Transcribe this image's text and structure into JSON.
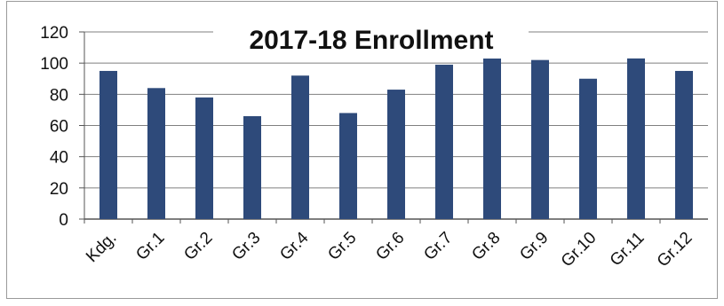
{
  "chart_data": {
    "type": "bar",
    "title": "2017-18 Enrollment",
    "xlabel": "",
    "ylabel": "",
    "categories": [
      "Kdg.",
      "Gr.1",
      "Gr.2",
      "Gr.3",
      "Gr.4",
      "Gr.5",
      "Gr.6",
      "Gr.7",
      "Gr.8",
      "Gr.9",
      "Gr.10",
      "Gr.11",
      "Gr.12"
    ],
    "values": [
      95,
      84,
      78,
      66,
      92,
      68,
      83,
      99,
      104,
      102,
      90,
      103,
      95
    ],
    "ylim": [
      0,
      120
    ],
    "yticks": [
      0,
      20,
      40,
      60,
      80,
      100,
      120
    ],
    "grid": true,
    "legend": "none",
    "colors": {
      "bar": "#2e4a7a",
      "grid": "#7f7f7f",
      "axis": "#555555"
    }
  }
}
